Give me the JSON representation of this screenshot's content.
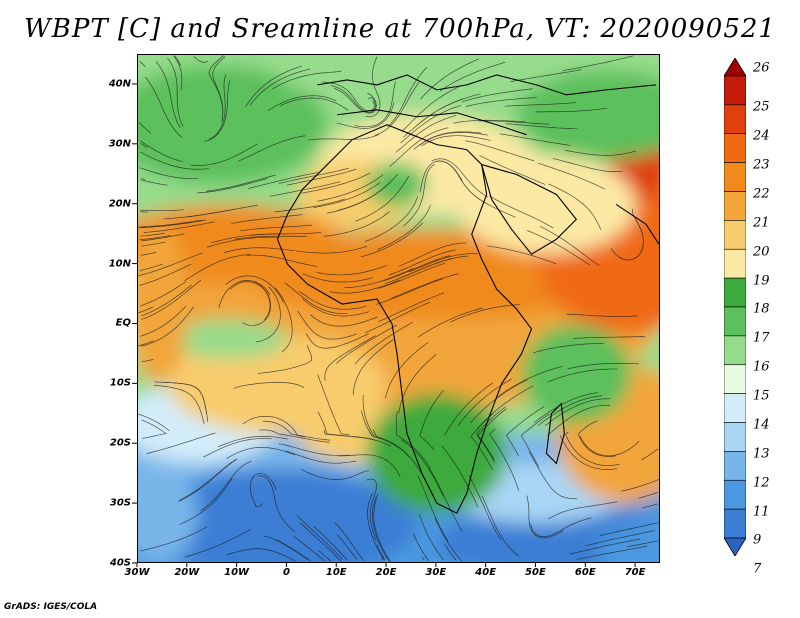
{
  "title": "WBPT [C] and Sreamline at 700hPa, VT: 2020090521",
  "footer": "GrADS: IGES/COLA",
  "map": {
    "lat_labels": [
      "40N",
      "30N",
      "20N",
      "10N",
      "EQ",
      "10S",
      "20S",
      "30S",
      "40S"
    ],
    "lon_labels": [
      "30W",
      "20W",
      "10W",
      "0",
      "10E",
      "20E",
      "30E",
      "40E",
      "50E",
      "60E",
      "70E"
    ],
    "lat_range": [
      -40,
      45
    ],
    "lon_range": [
      -30,
      75
    ]
  },
  "colorbar": {
    "labels": [
      "26",
      "25",
      "24",
      "23",
      "22",
      "21",
      "20",
      "19",
      "18",
      "17",
      "16",
      "15",
      "14",
      "13",
      "12",
      "11",
      "9",
      "7"
    ],
    "colors": [
      "#a00000",
      "#c41a0a",
      "#e0400e",
      "#f06a14",
      "#f08a1a",
      "#f2a53a",
      "#f8cc6c",
      "#fce9a4",
      "#3caa3c",
      "#5cc05c",
      "#96dc8c",
      "#e8fae0",
      "#d2ecfa",
      "#a8d6f4",
      "#78b6ea",
      "#4c98e0",
      "#3a7ed4",
      "#2a64c0"
    ]
  }
}
